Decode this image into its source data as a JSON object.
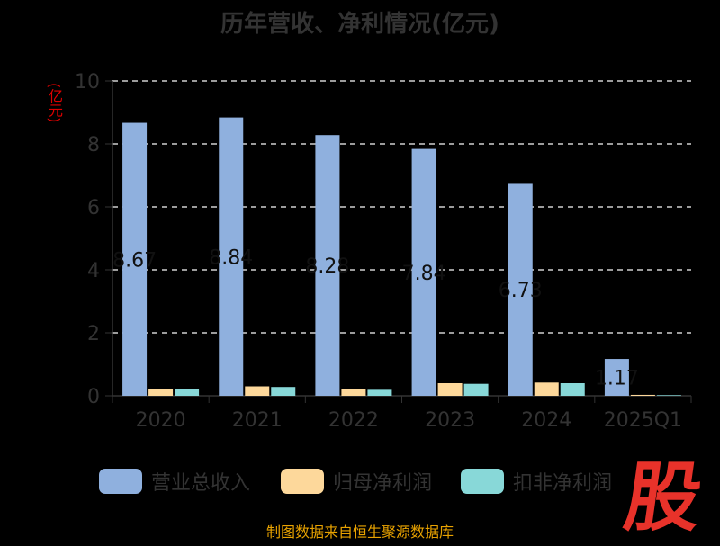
{
  "chart_data": {
    "type": "bar",
    "title": "历年营收、净利情况(亿元)",
    "ylabel": "(亿元)",
    "ylim": [
      0,
      10
    ],
    "yticks": [
      0,
      2,
      4,
      6,
      8,
      10
    ],
    "grid": true,
    "legend_position": "bottom",
    "categories": [
      "2020",
      "2021",
      "2022",
      "2023",
      "2024",
      "2025Q1"
    ],
    "series": [
      {
        "name": "营业总收入",
        "color": "#8fb0de",
        "values": [
          8.67,
          8.84,
          8.28,
          7.84,
          6.73,
          1.17
        ]
      },
      {
        "name": "归母净利润",
        "color": "#fdd89b",
        "values": [
          0.22,
          0.3,
          0.2,
          0.4,
          0.42,
          0.03
        ]
      },
      {
        "name": "扣非净利润",
        "color": "#88d8d8",
        "values": [
          0.2,
          0.28,
          0.19,
          0.38,
          0.4,
          0.02
        ]
      }
    ],
    "data_labels": [
      "8.67",
      "8.84",
      "8.28",
      "7.84",
      "6.73",
      "1.17"
    ]
  },
  "footer": "制图数据来自恒生聚源数据库",
  "logo_text": "股"
}
